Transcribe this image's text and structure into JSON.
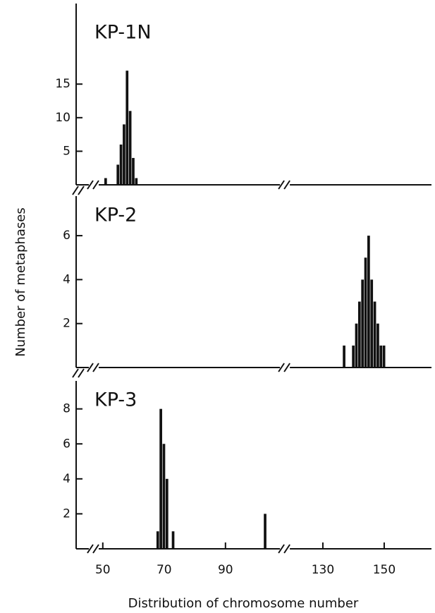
{
  "ylabel": "Number of metaphases",
  "xlabel": "Distribution of chromosome number",
  "xsegments": [
    [
      42,
      108
    ],
    [
      119,
      165
    ]
  ],
  "xticks": [
    50,
    70,
    90,
    130,
    150
  ],
  "chart_data": [
    {
      "type": "bar",
      "title": "KP-1N",
      "x": [
        51,
        55,
        56,
        57,
        58,
        59,
        60,
        61
      ],
      "values": [
        1,
        3,
        6,
        9,
        17,
        11,
        4,
        1
      ],
      "ylim": [
        0,
        27
      ],
      "yticks": [
        5,
        10,
        15
      ],
      "color": "#111111"
    },
    {
      "type": "bar",
      "title": "KP-2",
      "x": [
        137,
        140,
        141,
        142,
        143,
        144,
        145,
        146,
        147,
        148,
        149,
        150
      ],
      "values": [
        1,
        1,
        2,
        3,
        4,
        5,
        6,
        4,
        3,
        2,
        1,
        1
      ],
      "ylim": [
        0,
        7.8
      ],
      "yticks": [
        2,
        4,
        6
      ],
      "color": "#111111"
    },
    {
      "type": "bar",
      "title": "KP-3",
      "x": [
        68,
        69,
        70,
        71,
        73,
        103
      ],
      "values": [
        1,
        8,
        6,
        4,
        1,
        2
      ],
      "ylim": [
        0,
        9.6
      ],
      "yticks": [
        2,
        4,
        6,
        8
      ],
      "color": "#111111"
    }
  ]
}
